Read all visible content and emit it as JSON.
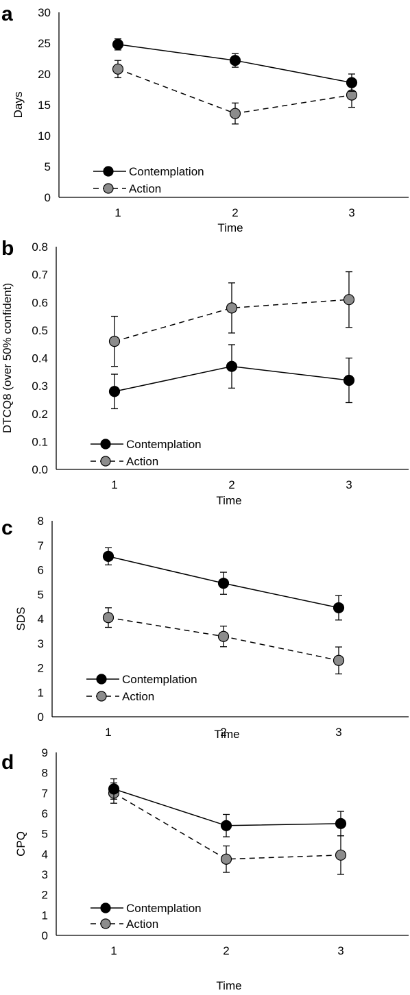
{
  "chart_data": [
    {
      "panel": "a",
      "type": "line",
      "x": [
        1,
        2,
        3
      ],
      "xlabel": "Time",
      "ylabel": "Days",
      "ylim": [
        0,
        30
      ],
      "yticks": [
        0,
        5,
        10,
        15,
        20,
        25,
        30
      ],
      "yticklabels": [
        "0",
        "5",
        "10",
        "15",
        "20",
        "25",
        "30"
      ],
      "xticklabels": [
        "1",
        "2",
        "3"
      ],
      "legend_position": "bottom-left",
      "series": [
        {
          "name": "Contemplation",
          "values": [
            24.8,
            22.2,
            18.6
          ],
          "err": [
            0.9,
            1.1,
            1.4
          ],
          "color": "#000000",
          "dash": "solid"
        },
        {
          "name": "Action",
          "values": [
            20.8,
            13.6,
            16.6
          ],
          "err": [
            1.4,
            1.7,
            2.0
          ],
          "color": "#8c8c8c",
          "dash": "dashed"
        }
      ]
    },
    {
      "panel": "b",
      "type": "line",
      "x": [
        1,
        2,
        3
      ],
      "xlabel": "Time",
      "ylabel": "DTCQ8 (over 50% confident)",
      "ylim": [
        0,
        0.8
      ],
      "yticks": [
        0,
        0.1,
        0.2,
        0.3,
        0.4,
        0.5,
        0.6,
        0.7,
        0.8
      ],
      "yticklabels": [
        "0.0",
        "0.1",
        "0.2",
        "0.3",
        "0.4",
        "0.5",
        "0.6",
        "0.7",
        "0.8"
      ],
      "xticklabels": [
        "1",
        "2",
        "3"
      ],
      "legend_position": "bottom-left",
      "series": [
        {
          "name": "Contemplation",
          "values": [
            0.28,
            0.37,
            0.32
          ],
          "err": [
            0.062,
            0.078,
            0.08
          ],
          "color": "#000000",
          "dash": "solid"
        },
        {
          "name": "Action",
          "values": [
            0.46,
            0.58,
            0.61
          ],
          "err": [
            0.09,
            0.09,
            0.1
          ],
          "color": "#8c8c8c",
          "dash": "dashed"
        }
      ]
    },
    {
      "panel": "c",
      "type": "line",
      "x": [
        1,
        2,
        3
      ],
      "xlabel": "Time",
      "ylabel": "SDS",
      "ylim": [
        0,
        8
      ],
      "yticks": [
        0,
        1,
        2,
        3,
        4,
        5,
        6,
        7,
        8
      ],
      "yticklabels": [
        "0",
        "1",
        "2",
        "3",
        "4",
        "5",
        "6",
        "7",
        "8"
      ],
      "xticklabels": [
        "1",
        "2",
        "3"
      ],
      "legend_position": "bottom-left",
      "series": [
        {
          "name": "Contemplation",
          "values": [
            6.55,
            5.45,
            4.45
          ],
          "err": [
            0.35,
            0.45,
            0.5
          ],
          "color": "#000000",
          "dash": "solid"
        },
        {
          "name": "Action",
          "values": [
            4.05,
            3.28,
            2.3
          ],
          "err": [
            0.4,
            0.42,
            0.55
          ],
          "color": "#8c8c8c",
          "dash": "dashed"
        }
      ]
    },
    {
      "panel": "d",
      "type": "line",
      "x": [
        1,
        2,
        3
      ],
      "xlabel": "Time",
      "ylabel": "CPQ",
      "ylim": [
        0,
        9
      ],
      "yticks": [
        0,
        1,
        2,
        3,
        4,
        5,
        6,
        7,
        8,
        9
      ],
      "yticklabels": [
        "0",
        "1",
        "2",
        "3",
        "4",
        "5",
        "6",
        "7",
        "8",
        "9"
      ],
      "xticklabels": [
        "1",
        "2",
        "3"
      ],
      "legend_position": "bottom-left",
      "series": [
        {
          "name": "Contemplation",
          "values": [
            7.2,
            5.4,
            5.5
          ],
          "err": [
            0.5,
            0.55,
            0.6
          ],
          "color": "#000000",
          "dash": "solid"
        },
        {
          "name": "Action",
          "values": [
            7.0,
            3.75,
            3.95
          ],
          "err": [
            0.5,
            0.65,
            0.95
          ],
          "color": "#8c8c8c",
          "dash": "dashed"
        }
      ]
    }
  ]
}
